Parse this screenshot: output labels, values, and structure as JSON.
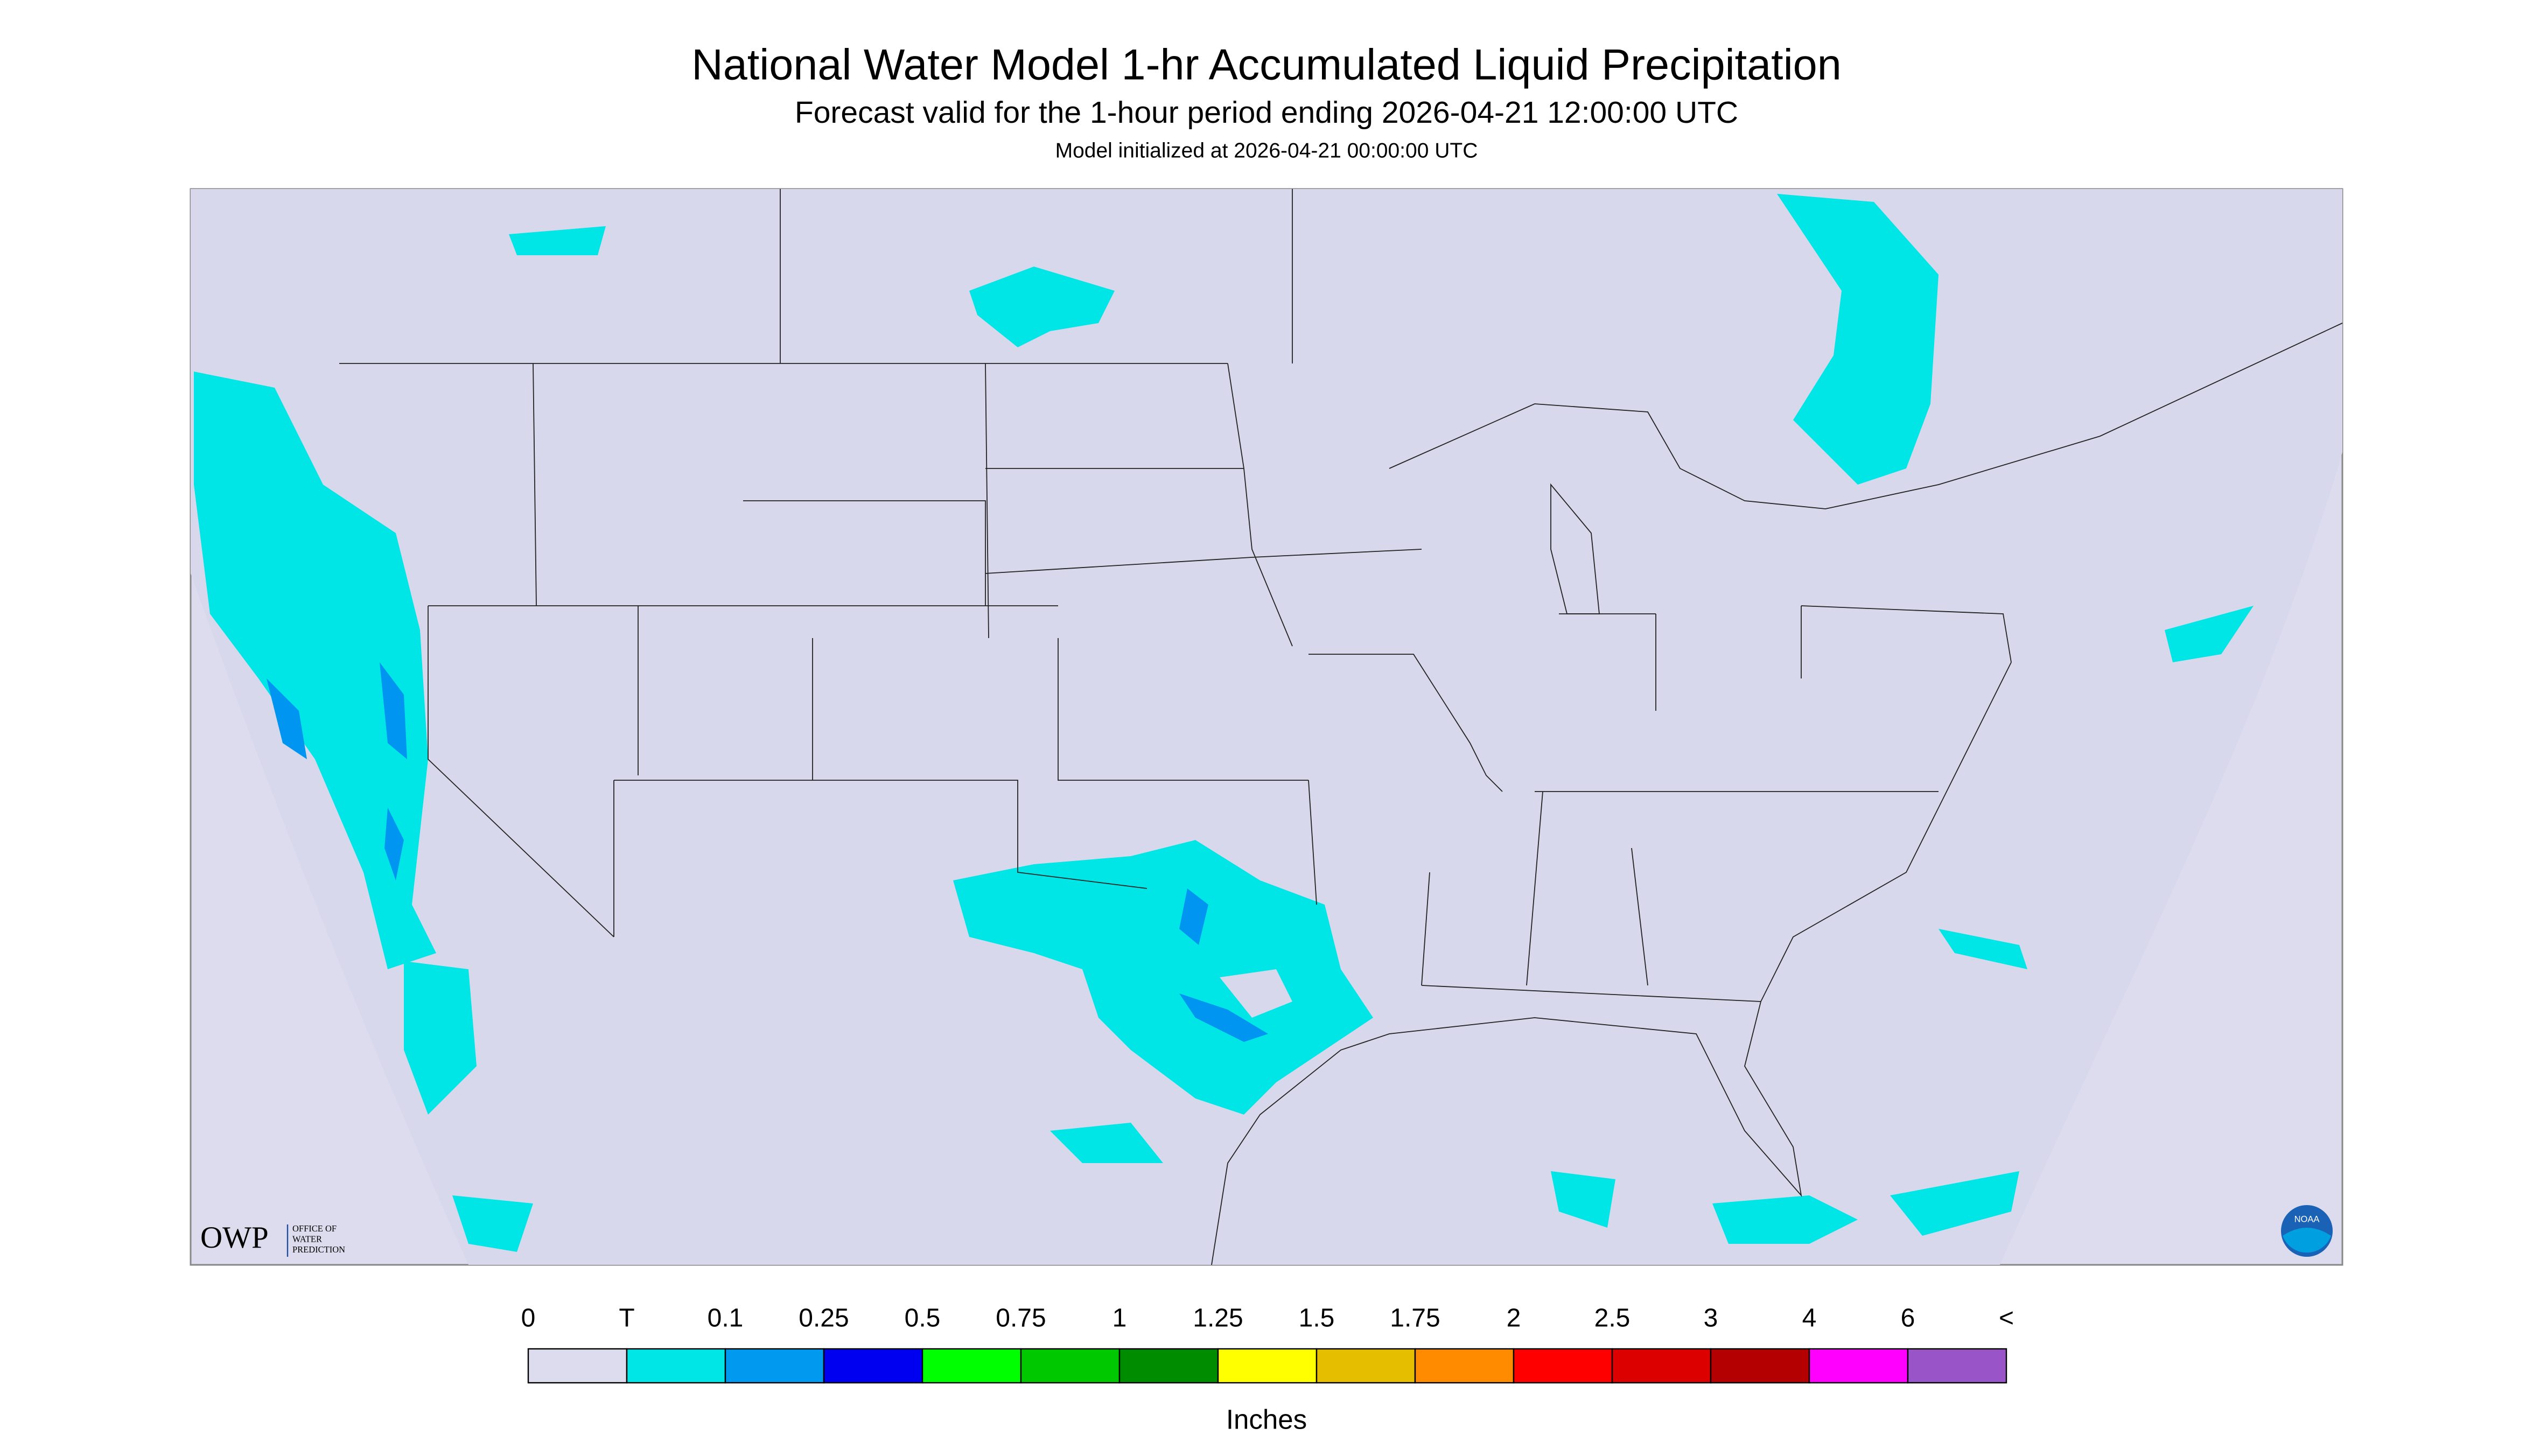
{
  "header": {
    "title": "National Water Model 1-hr Accumulated Liquid Precipitation",
    "subtitle": "Forecast valid for the 1-hour period ending 2026-04-21 12:00:00 UTC",
    "init": "Model initialized at 2026-04-21 00:00:00 UTC"
  },
  "legend": {
    "ticks": [
      "0",
      "T",
      "0.1",
      "0.25",
      "0.5",
      "0.75",
      "1",
      "1.25",
      "1.5",
      "1.75",
      "2",
      "2.5",
      "3",
      "4",
      "6",
      "<"
    ],
    "colors": [
      "#dcdcee",
      "#00e5e5",
      "#0099f0",
      "#0000f0",
      "#00ff00",
      "#00c800",
      "#008c00",
      "#ffff00",
      "#e6be00",
      "#ff8c00",
      "#ff0000",
      "#dc0000",
      "#b40000",
      "#ff00ff",
      "#9955c8"
    ],
    "units": "Inches"
  },
  "logos": {
    "owp": "OWP",
    "owp_name": [
      "OFFICE OF",
      "WATER",
      "PREDICTION"
    ],
    "noaa": "NOAA"
  }
}
